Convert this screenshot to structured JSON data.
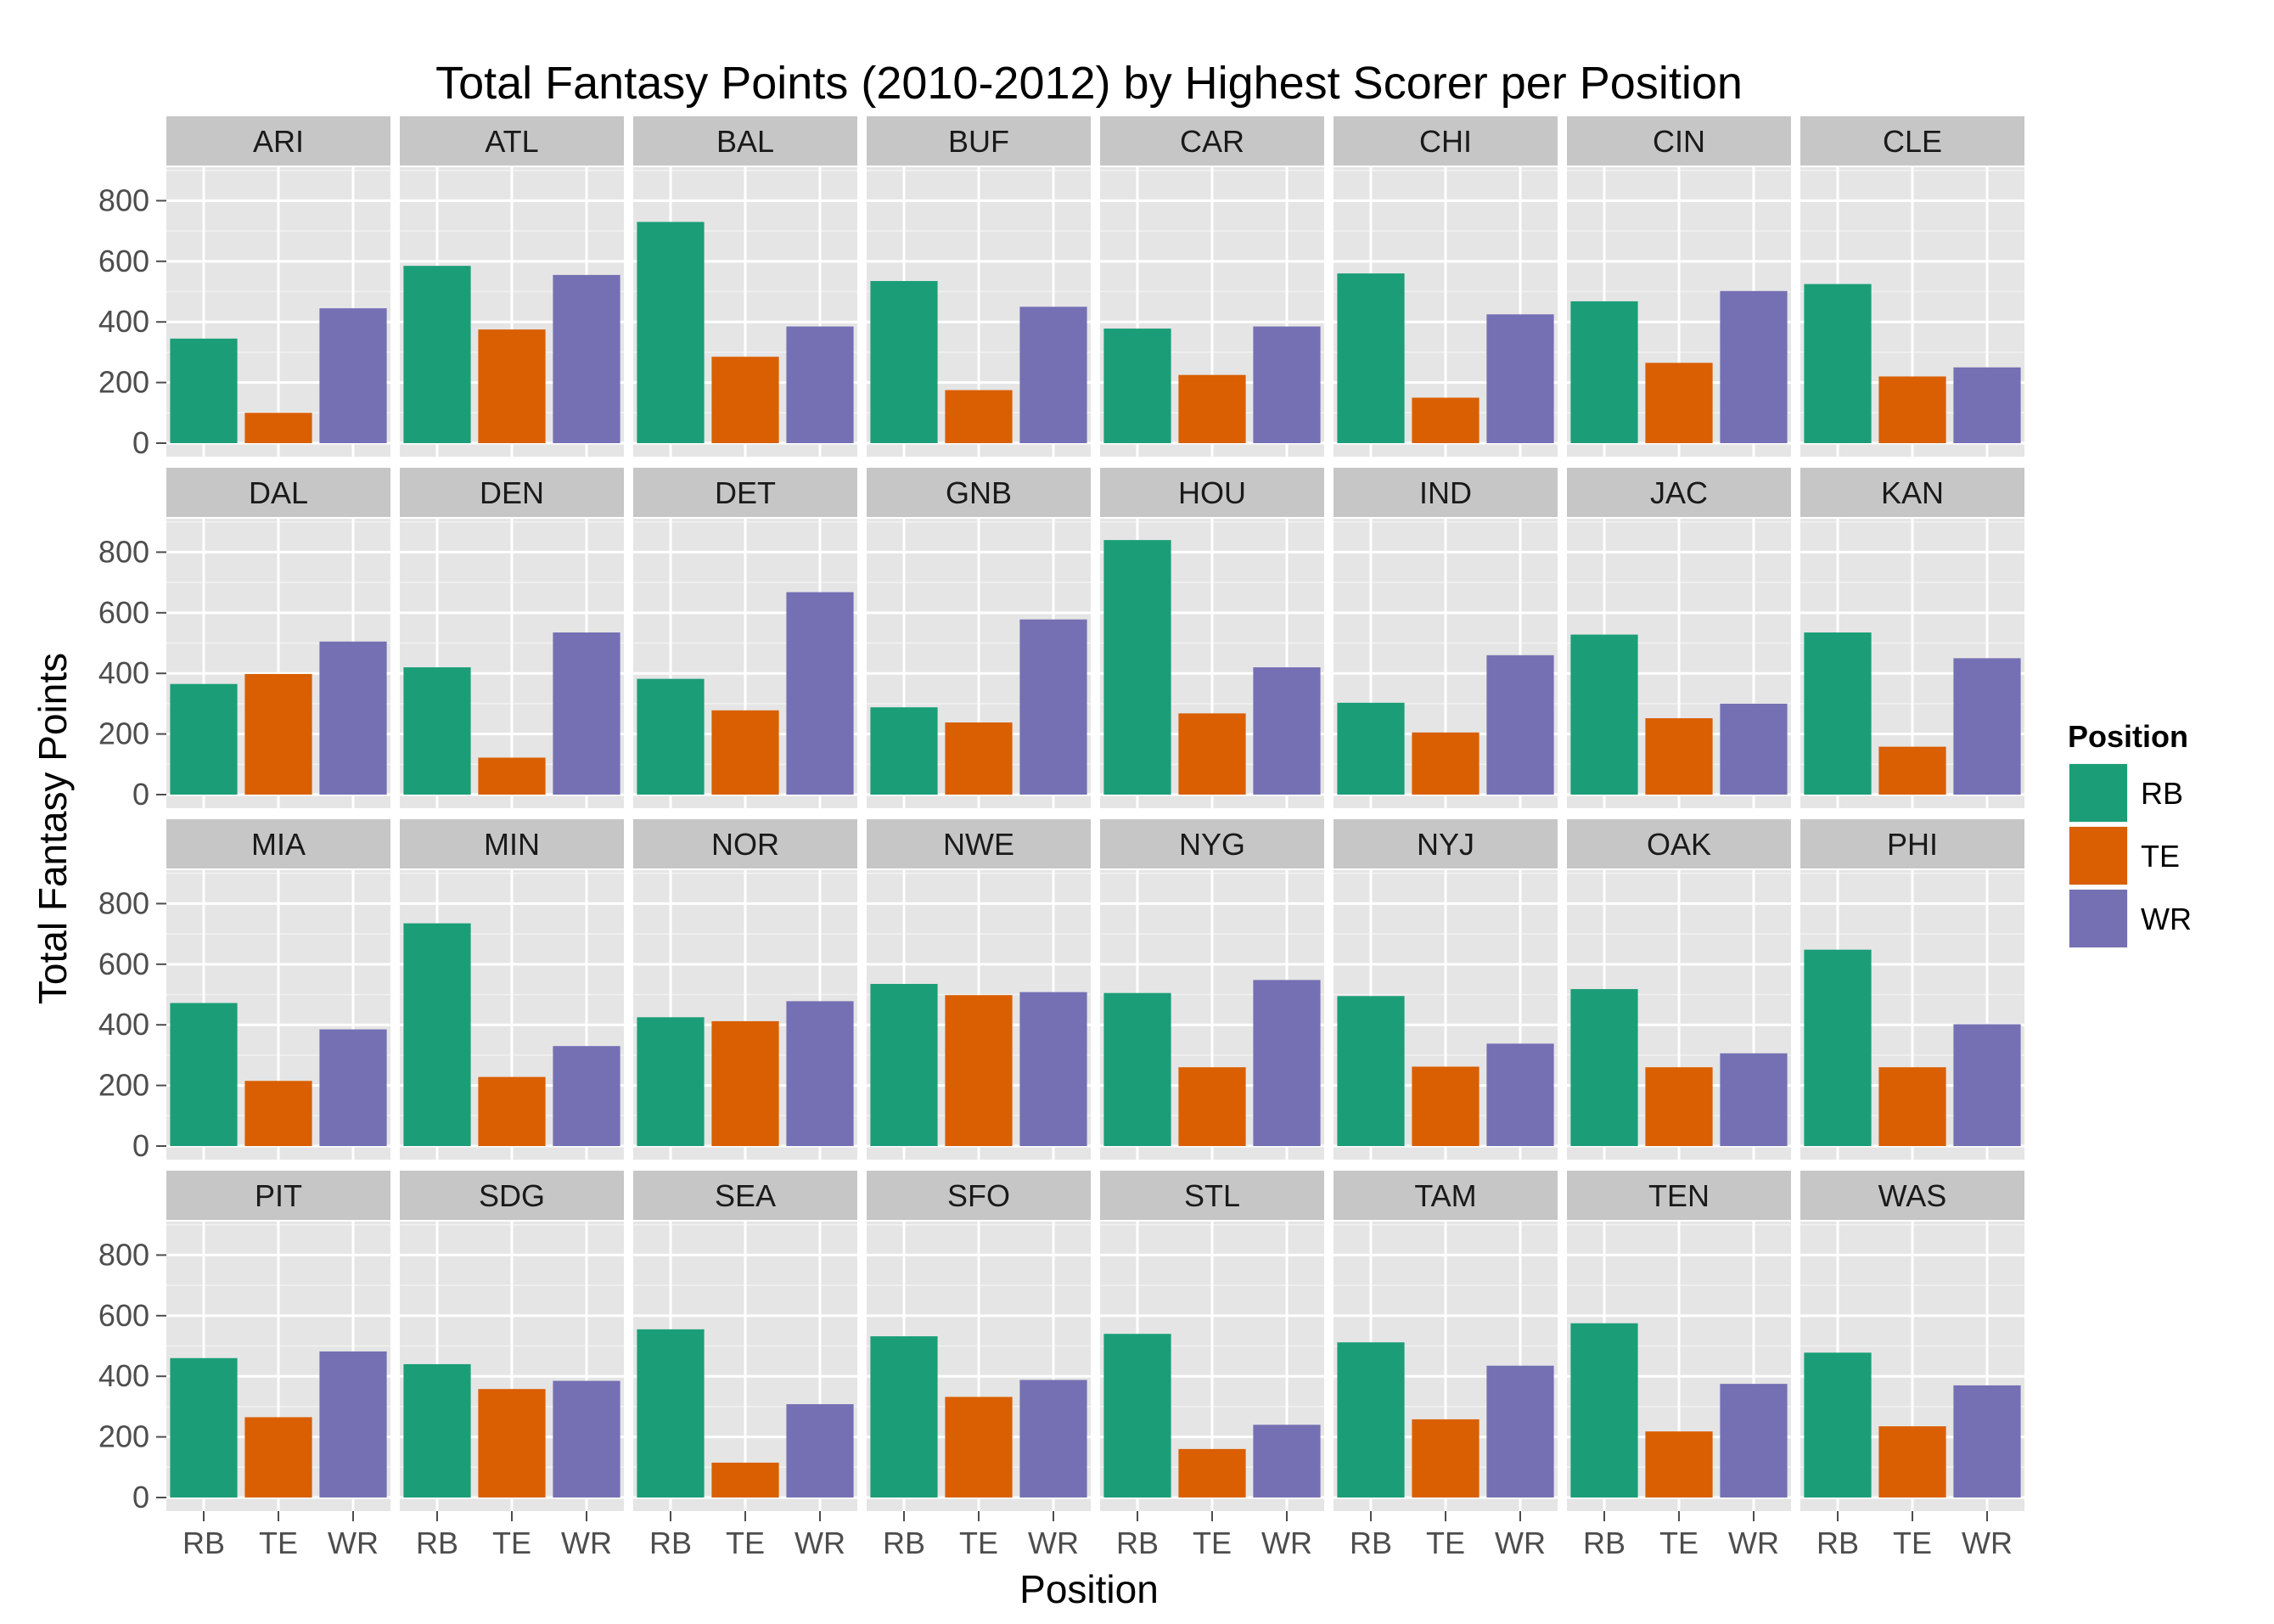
{
  "chart_data": {
    "type": "bar",
    "title": "Total Fantasy Points (2010-2012) by Highest Scorer per Position",
    "xlabel": "Position",
    "ylabel": "Total Fantasy Points",
    "categories": [
      "RB",
      "TE",
      "WR"
    ],
    "yticks": [
      "0",
      "200",
      "400",
      "600",
      "800"
    ],
    "ylim": [
      0,
      900
    ],
    "grid": true,
    "legend": {
      "title": "Position",
      "placement": "right",
      "items": [
        {
          "label": "RB",
          "color": "#1b9e77"
        },
        {
          "label": "TE",
          "color": "#d95f02"
        },
        {
          "label": "WR",
          "color": "#7570b3"
        }
      ]
    },
    "colors": {
      "RB": "#1b9e77",
      "TE": "#d95f02",
      "WR": "#7570b3"
    },
    "panel_background": "#e5e5e5",
    "strip_background": "#cccccc",
    "teams": [
      {
        "team": "ARI",
        "values": [
          345,
          100,
          445
        ]
      },
      {
        "team": "ATL",
        "values": [
          585,
          375,
          555
        ]
      },
      {
        "team": "BAL",
        "values": [
          730,
          285,
          385
        ]
      },
      {
        "team": "BUF",
        "values": [
          535,
          175,
          450
        ]
      },
      {
        "team": "CAR",
        "values": [
          378,
          225,
          385
        ]
      },
      {
        "team": "CHI",
        "values": [
          560,
          150,
          425
        ]
      },
      {
        "team": "CIN",
        "values": [
          468,
          265,
          502
        ]
      },
      {
        "team": "CLE",
        "values": [
          525,
          220,
          250
        ]
      },
      {
        "team": "DAL",
        "values": [
          365,
          398,
          505
        ]
      },
      {
        "team": "DEN",
        "values": [
          420,
          122,
          535
        ]
      },
      {
        "team": "DET",
        "values": [
          382,
          278,
          668
        ]
      },
      {
        "team": "GNB",
        "values": [
          288,
          238,
          578
        ]
      },
      {
        "team": "HOU",
        "values": [
          840,
          268,
          420
        ]
      },
      {
        "team": "IND",
        "values": [
          303,
          205,
          460
        ]
      },
      {
        "team": "JAC",
        "values": [
          528,
          252,
          300
        ]
      },
      {
        "team": "KAN",
        "values": [
          535,
          158,
          450
        ]
      },
      {
        "team": "MIA",
        "values": [
          472,
          215,
          385
        ]
      },
      {
        "team": "MIN",
        "values": [
          735,
          228,
          330
        ]
      },
      {
        "team": "NOR",
        "values": [
          425,
          412,
          478
        ]
      },
      {
        "team": "NWE",
        "values": [
          535,
          498,
          508
        ]
      },
      {
        "team": "NYG",
        "values": [
          505,
          260,
          548
        ]
      },
      {
        "team": "NYJ",
        "values": [
          495,
          262,
          338
        ]
      },
      {
        "team": "OAK",
        "values": [
          518,
          260,
          306
        ]
      },
      {
        "team": "PHI",
        "values": [
          648,
          260,
          402
        ]
      },
      {
        "team": "PIT",
        "values": [
          460,
          265,
          482
        ]
      },
      {
        "team": "SDG",
        "values": [
          440,
          358,
          385
        ]
      },
      {
        "team": "SEA",
        "values": [
          555,
          115,
          308
        ]
      },
      {
        "team": "SFO",
        "values": [
          532,
          332,
          388
        ]
      },
      {
        "team": "STL",
        "values": [
          540,
          160,
          240
        ]
      },
      {
        "team": "TAM",
        "values": [
          512,
          258,
          435
        ]
      },
      {
        "team": "TEN",
        "values": [
          575,
          218,
          375
        ]
      },
      {
        "team": "WAS",
        "values": [
          478,
          235,
          370
        ]
      }
    ]
  }
}
